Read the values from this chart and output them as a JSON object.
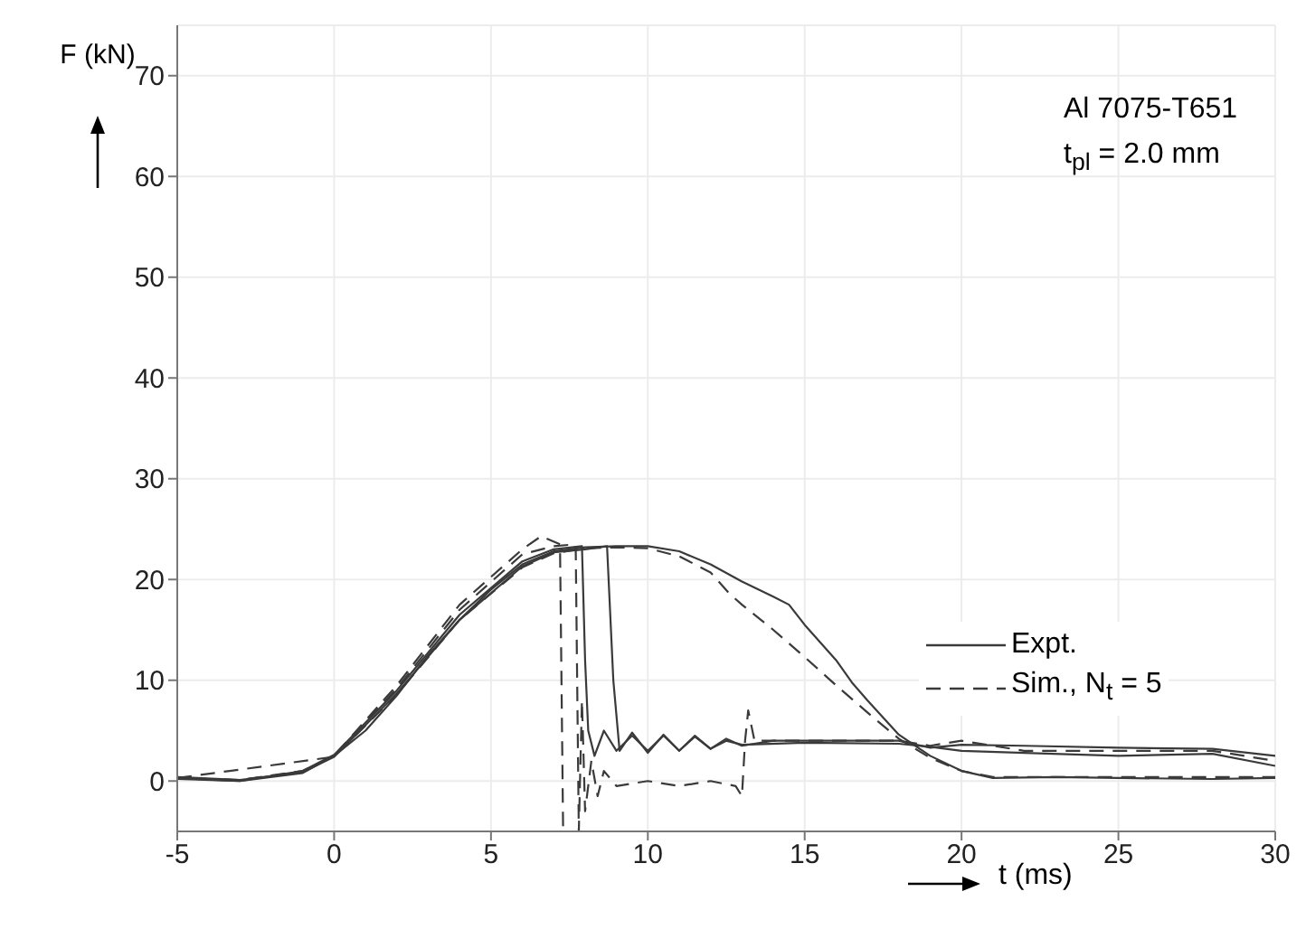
{
  "chart_data": {
    "type": "line",
    "xlabel": "t (ms)",
    "ylabel": "F (kN)",
    "xlim": [
      -5,
      30
    ],
    "ylim": [
      -5,
      75
    ],
    "xticks": [
      -5,
      0,
      5,
      10,
      15,
      20,
      25,
      30
    ],
    "yticks": [
      0,
      10,
      20,
      30,
      40,
      50,
      60,
      70
    ],
    "grid": true,
    "legend": "right",
    "marker": "none",
    "annotations": [
      "Al 7075-T651",
      "t$_{pl}$ = 2.0 mm"
    ],
    "series": [
      {
        "name": "Expt.",
        "color": "#3a3a3a",
        "line_style": "solid",
        "x": [
          -5,
          -3,
          -1,
          0,
          1,
          2,
          3,
          4,
          5,
          6,
          7,
          8,
          9,
          10,
          11,
          12,
          13,
          14,
          14.5,
          15,
          16,
          16.5,
          17,
          18,
          19,
          20,
          21,
          23,
          25,
          28,
          30
        ],
        "values": [
          0.3,
          0,
          0.8,
          2.5,
          5,
          8.5,
          12.5,
          16,
          19,
          21.5,
          22.8,
          23.2,
          23.3,
          23.3,
          22.8,
          21.5,
          19.8,
          18.3,
          17.5,
          15.5,
          12,
          9.8,
          8,
          4.6,
          2.5,
          1,
          0.3,
          0.4,
          0.3,
          0.2,
          0.3
        ]
      },
      {
        "color": "#3a3a3a",
        "line_style": "solid",
        "x": [
          -5,
          -3,
          -1,
          0,
          2,
          4,
          6,
          7,
          7.9,
          8,
          8.1,
          8.3,
          8.6,
          9,
          9.5,
          10,
          10.5,
          11,
          11.5,
          12,
          12.5,
          13,
          14,
          16,
          18,
          19,
          20,
          22,
          25,
          28,
          30
        ],
        "values": [
          0.2,
          0,
          1,
          2.6,
          9,
          16.5,
          21.8,
          23,
          23.3,
          12,
          5,
          2.5,
          5,
          3,
          4.5,
          3,
          4.5,
          3,
          4.5,
          3.2,
          4.2,
          3.5,
          4,
          4,
          4,
          3.3,
          3.6,
          3.5,
          3.3,
          3.2,
          2.5
        ]
      },
      {
        "color": "#3a3a3a",
        "line_style": "solid",
        "x": [
          -5,
          -3,
          -1,
          0,
          2,
          4,
          6,
          7,
          8,
          8.7,
          8.9,
          9.1,
          9.5,
          10,
          10.5,
          11,
          11.5,
          12,
          12.5,
          13,
          15,
          18,
          19,
          20,
          22,
          25,
          28,
          30
        ],
        "values": [
          0.4,
          0.1,
          0.9,
          2.4,
          8.7,
          16,
          21.3,
          22.7,
          23,
          23.3,
          10,
          3,
          4.8,
          2.8,
          4.6,
          3,
          4.4,
          3.2,
          4,
          3.6,
          3.8,
          3.7,
          3.4,
          3,
          2.8,
          2.5,
          2.7,
          1.5
        ]
      },
      {
        "name": "Sim., N$_{t}$ = 5",
        "color": "#3a3a3a",
        "line_style": "dashed",
        "x": [
          -5,
          -3,
          -1,
          0,
          2,
          4,
          6,
          6.6,
          7.2,
          7.3
        ],
        "values": [
          0.3,
          0.1,
          1,
          2.5,
          9.5,
          17.5,
          23,
          24.3,
          23.5,
          -5
        ]
      },
      {
        "color": "#3a3a3a",
        "line_style": "dashed",
        "x": [
          -5,
          -3,
          -1,
          0,
          2,
          4,
          6,
          7,
          7.7,
          7.8,
          7.9,
          8,
          8.2,
          8.4,
          8.6,
          9,
          10,
          11,
          12,
          12.8,
          13,
          13.1,
          13.2,
          13.4,
          15,
          18,
          19,
          20,
          22,
          25,
          28,
          30
        ],
        "values": [
          0.3,
          0.1,
          0.9,
          2.5,
          9.2,
          17,
          22.5,
          23.3,
          23.5,
          -5,
          8,
          -3,
          2,
          -1.5,
          1,
          -0.5,
          0,
          -0.5,
          0,
          -0.5,
          -1.5,
          4,
          7,
          4,
          4,
          4,
          3.5,
          4,
          3,
          3,
          3,
          2
        ]
      },
      {
        "color": "#3a3a3a",
        "line_style": "dashed",
        "x": [
          -5,
          0,
          2,
          4,
          6,
          7,
          8,
          9,
          10,
          11,
          12,
          12.6,
          13,
          14,
          15,
          16,
          17,
          18,
          19,
          20,
          21,
          25,
          30
        ],
        "values": [
          0.3,
          2.4,
          8.6,
          16,
          21.2,
          22.6,
          23.1,
          23.2,
          23.1,
          22.3,
          20.7,
          18.6,
          17.5,
          15,
          12.3,
          9.5,
          6.8,
          4.2,
          2.3,
          1,
          0.4,
          0.4,
          0.4
        ]
      }
    ]
  }
}
